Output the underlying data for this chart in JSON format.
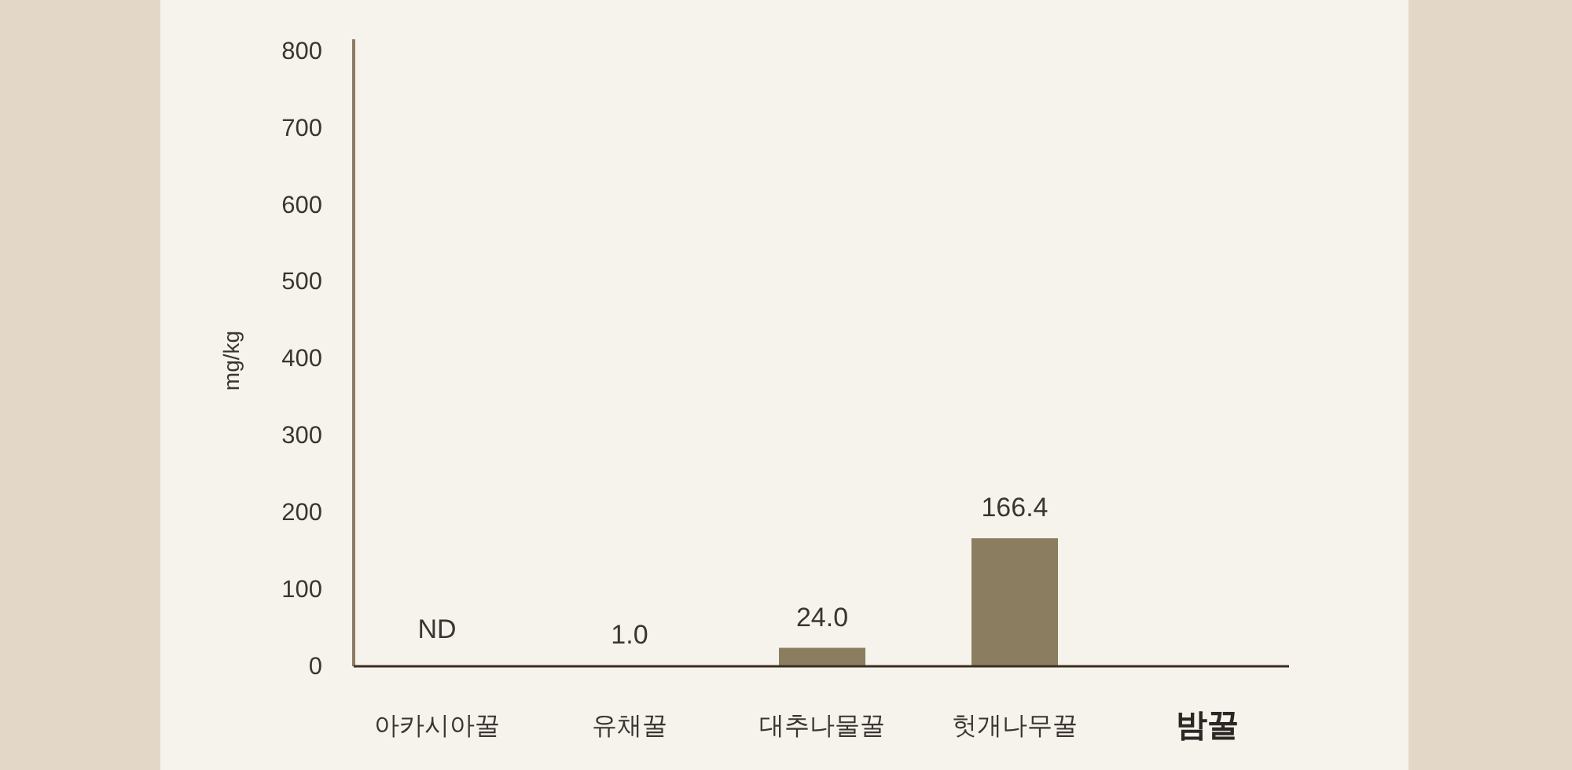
{
  "chart_data": {
    "type": "bar",
    "ylabel": "mg/kg",
    "categories": [
      "아카시아꿀",
      "유채꿀",
      "대추나물꿀",
      "헛개나무꿀",
      "**밤꿀**"
    ],
    "values": [
      null,
      1.0,
      24.0,
      166.4,
      null
    ],
    "value_labels": [
      "ND",
      "1.0",
      "24.0",
      "166.4",
      null
    ],
    "color": "#8a7d60",
    "ylim": [
      0,
      815
    ],
    "yticks": [
      0,
      100,
      200,
      300,
      400,
      500,
      600,
      700,
      800
    ]
  }
}
